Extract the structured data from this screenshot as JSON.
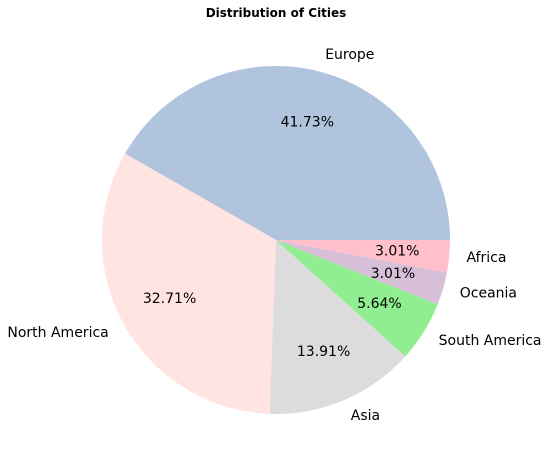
{
  "chart_data": {
    "type": "pie",
    "title": "Distribution of Cities",
    "start_angle_deg": 0,
    "direction": "counterclockwise",
    "slices": [
      {
        "label": "Europe",
        "value": 41.73,
        "pct_label": "41.73%",
        "color": "#b0c4de"
      },
      {
        "label": "North America",
        "value": 32.71,
        "pct_label": "32.71%",
        "color": "#ffe4e1"
      },
      {
        "label": "Asia",
        "value": 13.91,
        "pct_label": "13.91%",
        "color": "#dcdcdc"
      },
      {
        "label": "South America",
        "value": 5.64,
        "pct_label": "5.64%",
        "color": "#90ee90"
      },
      {
        "label": "Oceania",
        "value": 3.01,
        "pct_label": "3.01%",
        "color": "#d8bfd8"
      },
      {
        "label": "Africa",
        "value": 3.01,
        "pct_label": "3.01%",
        "color": "#ffc0cb"
      }
    ]
  }
}
